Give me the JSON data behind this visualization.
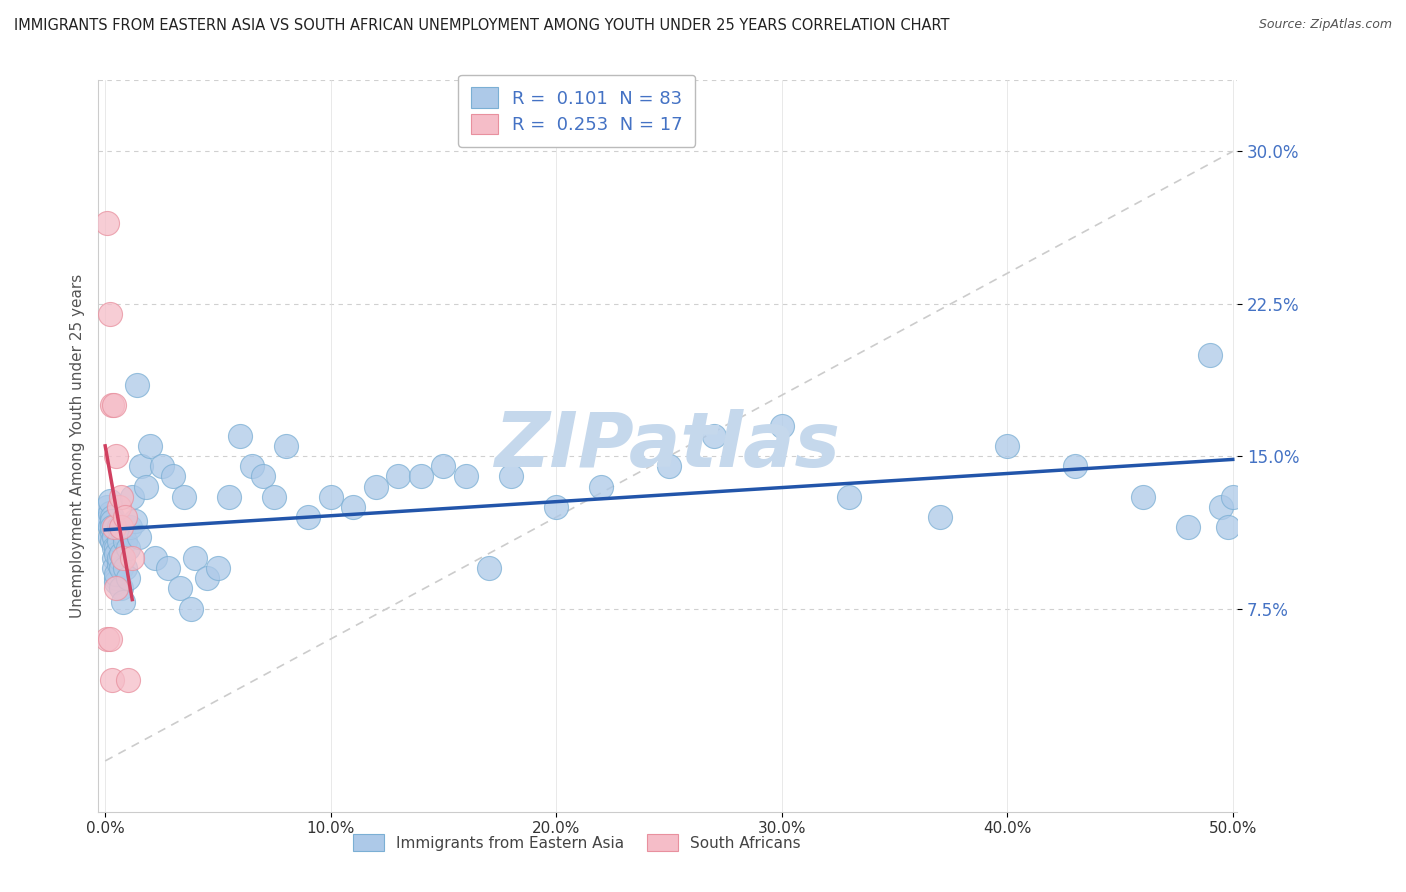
{
  "title": "IMMIGRANTS FROM EASTERN ASIA VS SOUTH AFRICAN UNEMPLOYMENT AMONG YOUTH UNDER 25 YEARS CORRELATION CHART",
  "source": "Source: ZipAtlas.com",
  "ylabel": "Unemployment Among Youth under 25 years",
  "xlim": [
    -0.003,
    0.502
  ],
  "ylim": [
    -0.025,
    0.335
  ],
  "xtick_labels": [
    "0.0%",
    "10.0%",
    "20.0%",
    "30.0%",
    "40.0%",
    "50.0%"
  ],
  "xtick_vals": [
    0.0,
    0.1,
    0.2,
    0.3,
    0.4,
    0.5
  ],
  "ytick_labels": [
    "7.5%",
    "15.0%",
    "22.5%",
    "30.0%"
  ],
  "ytick_vals": [
    0.075,
    0.15,
    0.225,
    0.3
  ],
  "blue_R": 0.101,
  "blue_N": 83,
  "pink_R": 0.253,
  "pink_N": 17,
  "blue_color": "#adc9e8",
  "blue_edge": "#7bafd4",
  "pink_color": "#f5bdc8",
  "pink_edge": "#e8909e",
  "blue_line_color": "#2255aa",
  "pink_line_color": "#d04060",
  "ref_line_color": "#cccccc",
  "watermark": "ZIPatlas",
  "watermark_color": "#c5d8ec",
  "legend_label_blue": "Immigrants from Eastern Asia",
  "legend_label_pink": "South Africans",
  "ytick_color": "#4472c4",
  "xtick_color": "#333333",
  "blue_x": [
    0.001,
    0.001,
    0.001,
    0.002,
    0.002,
    0.002,
    0.002,
    0.003,
    0.003,
    0.003,
    0.003,
    0.003,
    0.004,
    0.004,
    0.004,
    0.004,
    0.005,
    0.005,
    0.005,
    0.005,
    0.005,
    0.006,
    0.006,
    0.006,
    0.006,
    0.007,
    0.007,
    0.007,
    0.008,
    0.008,
    0.009,
    0.009,
    0.01,
    0.01,
    0.011,
    0.012,
    0.013,
    0.014,
    0.015,
    0.016,
    0.018,
    0.02,
    0.022,
    0.025,
    0.028,
    0.03,
    0.033,
    0.035,
    0.038,
    0.04,
    0.045,
    0.05,
    0.055,
    0.06,
    0.065,
    0.07,
    0.075,
    0.08,
    0.09,
    0.1,
    0.11,
    0.12,
    0.13,
    0.14,
    0.15,
    0.16,
    0.17,
    0.18,
    0.2,
    0.22,
    0.25,
    0.27,
    0.3,
    0.33,
    0.37,
    0.4,
    0.43,
    0.46,
    0.48,
    0.49,
    0.495,
    0.498,
    0.5
  ],
  "blue_y": [
    0.12,
    0.125,
    0.118,
    0.115,
    0.122,
    0.11,
    0.128,
    0.112,
    0.12,
    0.118,
    0.108,
    0.115,
    0.1,
    0.095,
    0.11,
    0.105,
    0.09,
    0.105,
    0.088,
    0.092,
    0.102,
    0.097,
    0.115,
    0.1,
    0.108,
    0.095,
    0.085,
    0.102,
    0.078,
    0.112,
    0.095,
    0.108,
    0.09,
    0.105,
    0.115,
    0.13,
    0.118,
    0.185,
    0.11,
    0.145,
    0.135,
    0.155,
    0.1,
    0.145,
    0.095,
    0.14,
    0.085,
    0.13,
    0.075,
    0.1,
    0.09,
    0.095,
    0.13,
    0.16,
    0.145,
    0.14,
    0.13,
    0.155,
    0.12,
    0.13,
    0.125,
    0.135,
    0.14,
    0.14,
    0.145,
    0.14,
    0.095,
    0.14,
    0.125,
    0.135,
    0.145,
    0.16,
    0.165,
    0.13,
    0.12,
    0.155,
    0.145,
    0.13,
    0.115,
    0.2,
    0.125,
    0.115,
    0.13
  ],
  "pink_x": [
    0.001,
    0.001,
    0.002,
    0.002,
    0.003,
    0.003,
    0.004,
    0.004,
    0.005,
    0.005,
    0.006,
    0.007,
    0.007,
    0.008,
    0.009,
    0.01,
    0.012
  ],
  "pink_y": [
    0.265,
    0.06,
    0.22,
    0.06,
    0.175,
    0.04,
    0.175,
    0.115,
    0.15,
    0.085,
    0.125,
    0.13,
    0.115,
    0.1,
    0.12,
    0.04,
    0.1
  ]
}
